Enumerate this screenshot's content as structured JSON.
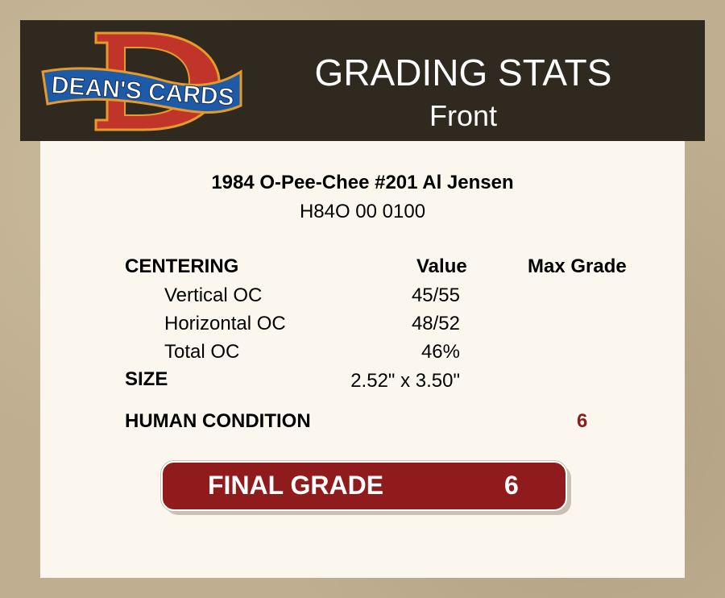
{
  "logo": {
    "text": "DEAN'S CARDS",
    "letter": "D"
  },
  "header": {
    "title": "GRADING STATS",
    "subtitle": "Front"
  },
  "card": {
    "name": "1984 O-Pee-Chee #201 Al Jensen",
    "cert": "H84O 00 0100"
  },
  "columns": {
    "section": "CENTERING",
    "value": "Value",
    "max_grade": "Max Grade"
  },
  "centering": [
    {
      "label": "Vertical OC",
      "value": "45/55"
    },
    {
      "label": "Horizontal OC",
      "value": "48/52"
    },
    {
      "label": "Total OC",
      "value": "46%"
    }
  ],
  "size": {
    "label": "SIZE",
    "value": "2.52\" x 3.50\""
  },
  "condition": {
    "label": "HUMAN CONDITION",
    "value": "6"
  },
  "final": {
    "label": "FINAL GRADE",
    "value": "6"
  },
  "colors": {
    "header_bg": "#2f2920",
    "panel_bg": "#fbf7ee",
    "accent_red": "#8f1b1c"
  }
}
